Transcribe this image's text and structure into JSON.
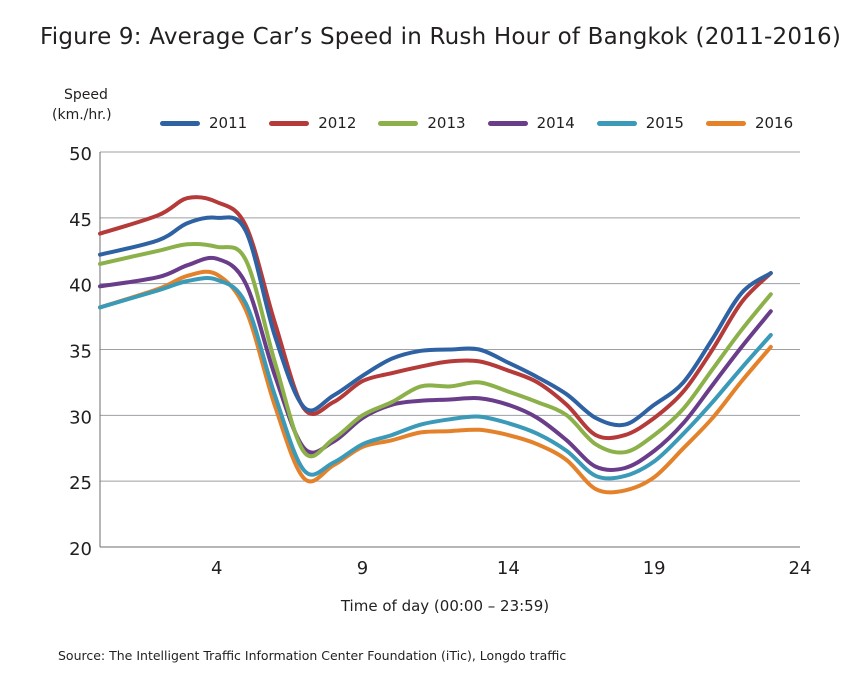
{
  "figure": {
    "title": "Figure 9:  Average Car’s Speed in Rush Hour of Bangkok (2011-2016)",
    "source": "Source: The Intelligent Traffic Information Center Foundation (iTic), Longdo traffic"
  },
  "chart_data": {
    "type": "line",
    "title": "Figure 9:  Average Car’s Speed in Rush Hour of Bangkok (2011-2016)",
    "ylabel_line1": "Speed",
    "ylabel_line2": "(km./hr.)",
    "xlabel": "Time of day (00:00 – 23:59)",
    "xlim": [
      0,
      24
    ],
    "ylim": [
      20,
      50
    ],
    "xticks": [
      4,
      9,
      14,
      19,
      24
    ],
    "yticks": [
      20,
      25,
      30,
      35,
      40,
      45,
      50
    ],
    "grid": "horizontal",
    "legend_position": "top",
    "x": [
      0,
      2,
      3,
      4,
      5,
      6,
      7,
      8,
      9,
      10,
      11,
      12,
      13,
      14,
      15,
      16,
      17,
      18,
      19,
      20,
      21,
      22,
      23
    ],
    "series": [
      {
        "name": "2011",
        "color": "#2e62a3",
        "values": [
          42.2,
          43.3,
          44.6,
          45.0,
          44.0,
          36.0,
          30.6,
          31.5,
          33.0,
          34.3,
          34.9,
          35.0,
          35.0,
          34.0,
          32.9,
          31.6,
          29.8,
          29.3,
          30.8,
          32.5,
          35.8,
          39.3,
          40.8
        ]
      },
      {
        "name": "2012",
        "color": "#b53a3a",
        "values": [
          43.8,
          45.2,
          46.5,
          46.2,
          44.4,
          37.0,
          30.5,
          31.0,
          32.6,
          33.2,
          33.7,
          34.1,
          34.1,
          33.4,
          32.5,
          30.8,
          28.5,
          28.5,
          29.8,
          31.8,
          35.0,
          38.6,
          40.8
        ]
      },
      {
        "name": "2013",
        "color": "#8cb04a",
        "values": [
          41.5,
          42.5,
          43.0,
          42.8,
          41.8,
          34.0,
          27.2,
          28.2,
          30.0,
          31.0,
          32.2,
          32.2,
          32.5,
          31.8,
          31.0,
          30.0,
          27.8,
          27.2,
          28.5,
          30.5,
          33.5,
          36.5,
          39.2
        ]
      },
      {
        "name": "2014",
        "color": "#6a3d8a",
        "values": [
          39.8,
          40.5,
          41.4,
          41.9,
          40.0,
          33.0,
          27.5,
          28.0,
          29.8,
          30.8,
          31.1,
          31.2,
          31.3,
          30.8,
          29.8,
          28.1,
          26.1,
          26.0,
          27.3,
          29.4,
          32.3,
          35.2,
          37.9
        ]
      },
      {
        "name": "2015",
        "color": "#3a9ab8",
        "values": [
          38.2,
          39.5,
          40.2,
          40.3,
          38.5,
          31.5,
          25.8,
          26.4,
          27.8,
          28.5,
          29.3,
          29.7,
          29.9,
          29.4,
          28.6,
          27.3,
          25.4,
          25.4,
          26.5,
          28.6,
          31.0,
          33.6,
          36.1
        ]
      },
      {
        "name": "2016",
        "color": "#e4822b",
        "values": [
          38.2,
          39.6,
          40.6,
          40.7,
          38.0,
          30.7,
          25.2,
          26.2,
          27.6,
          28.1,
          28.7,
          28.8,
          28.9,
          28.5,
          27.8,
          26.6,
          24.4,
          24.3,
          25.3,
          27.5,
          29.8,
          32.6,
          35.2
        ]
      }
    ]
  }
}
